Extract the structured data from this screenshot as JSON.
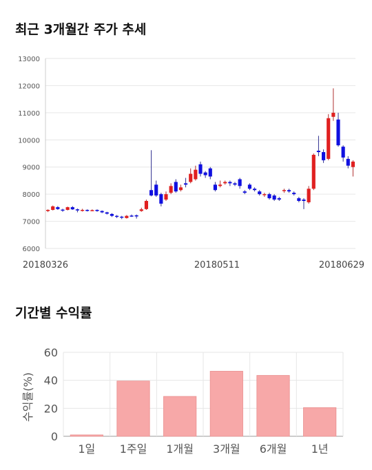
{
  "sections": {
    "price_title": "최근 3개월간 주가 추세",
    "returns_title": "기간별 수익률"
  },
  "colors": {
    "up": "#e02020",
    "down": "#1010e0",
    "bar": "#f7a8a8",
    "grid": "#e6e6e6"
  },
  "chart_data": [
    {
      "type": "candlestick",
      "title": "최근 3개월간 주가 추세",
      "ylim": [
        6000,
        13000
      ],
      "y_ticks": [
        6000,
        7000,
        8000,
        9000,
        10000,
        11000,
        12000,
        13000
      ],
      "x_tick_labels": [
        "20180326",
        "20180511",
        "20180629"
      ],
      "grid": true,
      "candles": [
        [
          7380,
          7420,
          7340,
          7440
        ],
        [
          7420,
          7550,
          7400,
          7580
        ],
        [
          7520,
          7450,
          7420,
          7560
        ],
        [
          7430,
          7420,
          7350,
          7460
        ],
        [
          7420,
          7520,
          7400,
          7540
        ],
        [
          7520,
          7440,
          7420,
          7560
        ],
        [
          7440,
          7400,
          7330,
          7470
        ],
        [
          7400,
          7420,
          7360,
          7460
        ],
        [
          7420,
          7400,
          7360,
          7440
        ],
        [
          7400,
          7410,
          7370,
          7440
        ],
        [
          7420,
          7380,
          7350,
          7440
        ],
        [
          7380,
          7330,
          7300,
          7400
        ],
        [
          7330,
          7280,
          7250,
          7350
        ],
        [
          7270,
          7200,
          7160,
          7300
        ],
        [
          7200,
          7170,
          7120,
          7230
        ],
        [
          7170,
          7140,
          7080,
          7200
        ],
        [
          7120,
          7200,
          7100,
          7230
        ],
        [
          7210,
          7200,
          7160,
          7250
        ],
        [
          7220,
          7180,
          7100,
          7250
        ],
        [
          7380,
          7440,
          7350,
          7500
        ],
        [
          7450,
          7750,
          7420,
          7800
        ],
        [
          8150,
          7950,
          7920,
          9620
        ],
        [
          8350,
          7950,
          7900,
          8500
        ],
        [
          8000,
          7650,
          7550,
          8050
        ],
        [
          7800,
          8000,
          7750,
          8100
        ],
        [
          8050,
          8300,
          8000,
          8400
        ],
        [
          8450,
          8100,
          8050,
          8550
        ],
        [
          8150,
          8250,
          8100,
          8350
        ],
        [
          8400,
          8350,
          8250,
          8600
        ],
        [
          8450,
          8750,
          8400,
          8950
        ],
        [
          8550,
          8900,
          8500,
          9050
        ],
        [
          9100,
          8750,
          8650,
          9200
        ],
        [
          8800,
          8700,
          8600,
          8850
        ],
        [
          8950,
          8650,
          8550,
          9000
        ],
        [
          8350,
          8150,
          8100,
          8450
        ],
        [
          8300,
          8350,
          8250,
          8500
        ],
        [
          8400,
          8450,
          8350,
          8500
        ],
        [
          8450,
          8400,
          8300,
          8500
        ],
        [
          8400,
          8350,
          8300,
          8450
        ],
        [
          8550,
          8300,
          8200,
          8600
        ],
        [
          8100,
          8050,
          8000,
          8150
        ],
        [
          8350,
          8200,
          8150,
          8400
        ],
        [
          8200,
          8150,
          8100,
          8250
        ],
        [
          8100,
          8000,
          7950,
          8150
        ],
        [
          8000,
          8000,
          7900,
          8050
        ],
        [
          8000,
          7850,
          7800,
          8050
        ],
        [
          7950,
          7800,
          7750,
          8000
        ],
        [
          7850,
          7800,
          7750,
          7900
        ],
        [
          8150,
          8150,
          8050,
          8200
        ],
        [
          8150,
          8100,
          8050,
          8200
        ],
        [
          8050,
          8000,
          7950,
          8100
        ],
        [
          7850,
          7750,
          7700,
          7900
        ],
        [
          7800,
          7750,
          7450,
          7850
        ],
        [
          7700,
          8200,
          7650,
          8300
        ],
        [
          8200,
          9450,
          8150,
          9500
        ],
        [
          9600,
          9550,
          9400,
          10150
        ],
        [
          9550,
          9250,
          9150,
          9650
        ],
        [
          9300,
          10800,
          9250,
          10950
        ],
        [
          10850,
          11000,
          10700,
          11900
        ],
        [
          10750,
          9800,
          9750,
          11000
        ],
        [
          9750,
          9350,
          9200,
          9800
        ],
        [
          9300,
          9050,
          8950,
          9400
        ],
        [
          9000,
          9200,
          8650,
          9250
        ]
      ]
    },
    {
      "type": "bar",
      "title": "기간별 수익률",
      "ylabel": "수익률(%)",
      "categories": [
        "1일",
        "1주일",
        "1개월",
        "3개월",
        "6개월",
        "1년"
      ],
      "values": [
        1,
        39.5,
        28.5,
        46.5,
        43.5,
        20.5
      ],
      "ylim": [
        0,
        60
      ],
      "y_ticks": [
        0,
        20,
        40,
        60
      ],
      "grid": true
    }
  ]
}
